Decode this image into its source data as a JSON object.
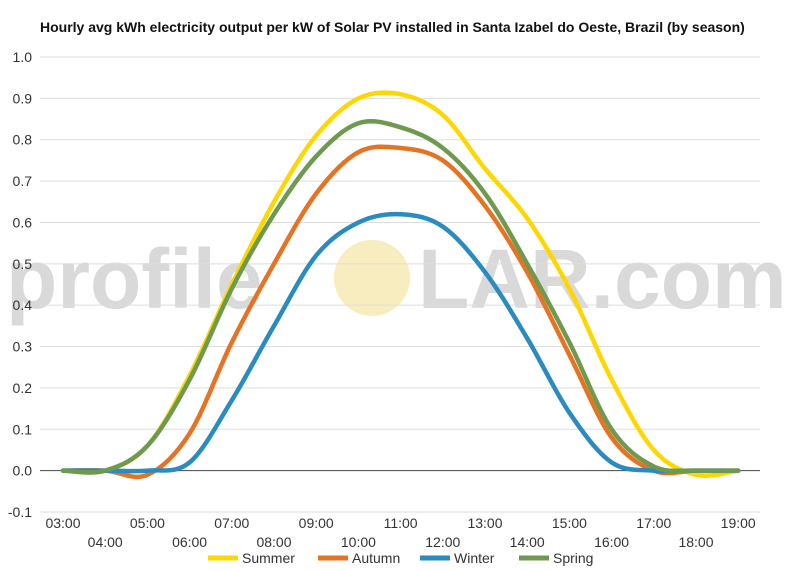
{
  "chart_data": {
    "type": "line",
    "title": "Hourly avg kWh electricity output per kW of Solar PV installed in Santa Izabel do Oeste, Brazil (by season)",
    "xlabel": "",
    "ylabel": "",
    "ylim": [
      -0.1,
      1.0
    ],
    "yticks": [
      -0.1,
      0.0,
      0.1,
      0.2,
      0.3,
      0.4,
      0.5,
      0.6,
      0.7,
      0.8,
      0.9,
      1.0
    ],
    "ytick_labels": [
      "-0.1",
      "0.0",
      "0.1",
      "0.2",
      "0.3",
      "0.4",
      "0.5",
      "0.6",
      "0.7",
      "0.8",
      "0.9",
      "1.0"
    ],
    "categories": [
      "03:00",
      "04:00",
      "05:00",
      "06:00",
      "07:00",
      "08:00",
      "09:00",
      "10:00",
      "11:00",
      "12:00",
      "13:00",
      "14:00",
      "15:00",
      "16:00",
      "17:00",
      "18:00",
      "19:00"
    ],
    "grid": true,
    "legend_position": "bottom",
    "watermark": {
      "left": "profile",
      "sun": "S",
      "right": "LAR.com",
      "sun_color": "#f6e7a8"
    },
    "series": [
      {
        "name": "Summer",
        "color": "#ffd700",
        "values": [
          0.0,
          0.0,
          0.06,
          0.23,
          0.45,
          0.65,
          0.81,
          0.9,
          0.91,
          0.86,
          0.73,
          0.61,
          0.44,
          0.22,
          0.05,
          -0.01,
          0.0
        ]
      },
      {
        "name": "Autumn",
        "color": "#e67322",
        "values": [
          0.0,
          0.0,
          -0.01,
          0.09,
          0.31,
          0.5,
          0.67,
          0.77,
          0.78,
          0.75,
          0.64,
          0.48,
          0.28,
          0.08,
          0.0,
          0.0,
          0.0
        ]
      },
      {
        "name": "Winter",
        "color": "#2a8bc0",
        "values": [
          0.0,
          0.0,
          0.0,
          0.02,
          0.17,
          0.35,
          0.52,
          0.6,
          0.62,
          0.59,
          0.48,
          0.32,
          0.14,
          0.02,
          0.0,
          0.0,
          0.0
        ]
      },
      {
        "name": "Spring",
        "color": "#6e9a50",
        "values": [
          0.0,
          0.0,
          0.06,
          0.22,
          0.44,
          0.62,
          0.76,
          0.84,
          0.83,
          0.78,
          0.67,
          0.5,
          0.31,
          0.1,
          0.01,
          0.0,
          0.0
        ]
      }
    ]
  }
}
